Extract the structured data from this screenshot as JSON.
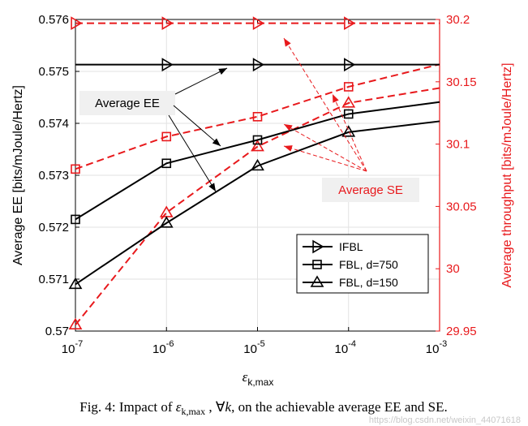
{
  "chart_data": {
    "type": "line",
    "xlabel_symbol": "ε",
    "xlabel_sub": "k,max",
    "x": [
      -7,
      -6,
      -5,
      -4,
      -3
    ],
    "x_ticks": [
      {
        "base": "10",
        "exp": "-7"
      },
      {
        "base": "10",
        "exp": "-6"
      },
      {
        "base": "10",
        "exp": "-5"
      },
      {
        "base": "10",
        "exp": "-4"
      },
      {
        "base": "10",
        "exp": "-3"
      }
    ],
    "ylim_left": [
      0.57,
      0.576
    ],
    "ylim_right": [
      29.95,
      30.2
    ],
    "yticks_left": [
      "0.57",
      "0.571",
      "0.572",
      "0.573",
      "0.574",
      "0.575",
      "0.576"
    ],
    "yticks_right": [
      "29.95",
      "30",
      "30.05",
      "30.1",
      "30.15",
      "30.2"
    ],
    "ylabel_left": "Average EE [bits/mJoule/Hertz]",
    "ylabel_right": "Average throughput [bits/mJoule/Hertz]",
    "ee_series": [
      {
        "name": "IFBL",
        "marker": "triangle-right",
        "color": "#000000",
        "x": [
          -7,
          -6,
          -5,
          -4,
          -3
        ],
        "y": [
          0.57513,
          0.57513,
          0.57513,
          0.57513,
          0.57513
        ],
        "marker_x": [
          -6,
          -5,
          -4
        ]
      },
      {
        "name": "FBL, d=750",
        "marker": "square",
        "color": "#000000",
        "x": [
          -7,
          -6,
          -5,
          -4,
          -3
        ],
        "y": [
          0.57215,
          0.57323,
          0.57368,
          0.57418,
          0.57441
        ],
        "marker_x": [
          -7,
          -6,
          -5,
          -4
        ]
      },
      {
        "name": "FBL, d=150",
        "marker": "triangle-up",
        "color": "#000000",
        "x": [
          -7,
          -6,
          -5,
          -4,
          -3
        ],
        "y": [
          0.5709,
          0.57208,
          0.57318,
          0.57383,
          0.57404
        ],
        "marker_x": [
          -7,
          -6,
          -5,
          -4
        ]
      }
    ],
    "se_series": [
      {
        "name": "IFBL",
        "marker": "triangle-right",
        "color": "#e8191c",
        "x": [
          -7,
          -6,
          -5,
          -4,
          -3
        ],
        "y": [
          30.197,
          30.197,
          30.197,
          30.197,
          30.197
        ],
        "marker_x": [
          -7,
          -6,
          -5,
          -4
        ]
      },
      {
        "name": "FBL, d=750",
        "marker": "square",
        "color": "#e8191c",
        "x": [
          -7,
          -6,
          -5,
          -4,
          -3
        ],
        "y": [
          30.08,
          30.106,
          30.122,
          30.146,
          30.164
        ],
        "marker_x": [
          -7,
          -6,
          -5,
          -4
        ]
      },
      {
        "name": "FBL, d=150",
        "marker": "triangle-up",
        "color": "#e8191c",
        "x": [
          -7,
          -6,
          -5,
          -4,
          -3
        ],
        "y": [
          29.955,
          30.045,
          30.098,
          30.133,
          30.145
        ],
        "marker_x": [
          -7,
          -6,
          -5,
          -4
        ]
      }
    ],
    "legend": [
      "IFBL",
      "FBL, d=750",
      "FBL, d=150"
    ],
    "annotations": {
      "ee": "Average EE",
      "se": "Average SE"
    }
  },
  "caption": {
    "prefix": "Fig. 4: Impact of ",
    "eps": "ε",
    "sub": "k,max",
    "middle": " , ∀",
    "k": "k",
    "suffix": ", on the achievable average EE and SE."
  },
  "watermark": "https://blog.csdn.net/weixin_44071618",
  "colors": {
    "ee": "#000000",
    "se": "#e8191c",
    "annotation_bg": "#f0f0f0"
  }
}
